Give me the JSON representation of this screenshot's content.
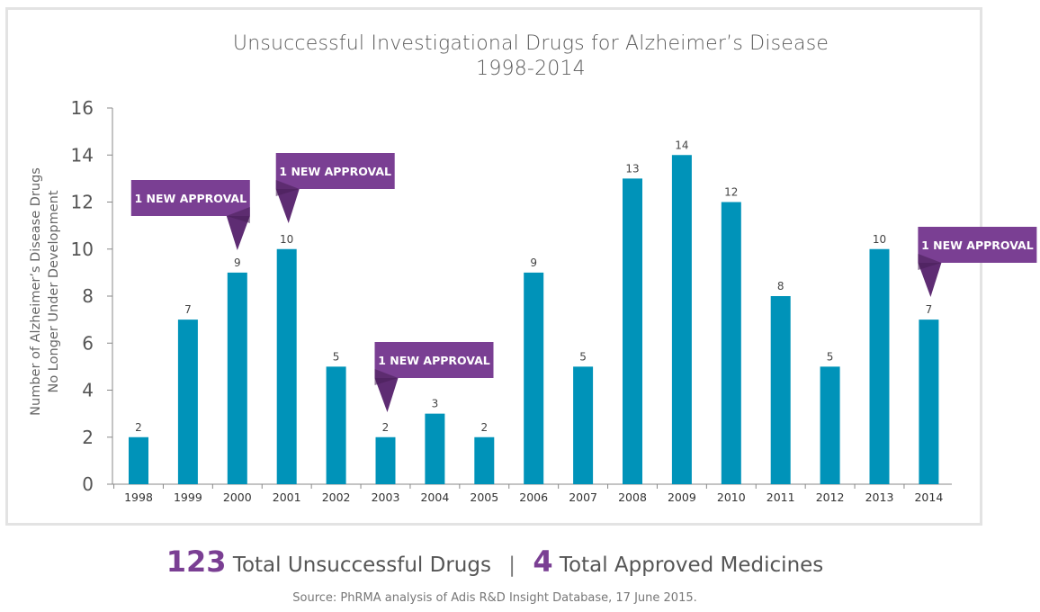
{
  "chart_data": {
    "type": "bar",
    "title": "Unsuccessful Investigational Drugs for Alzheimer’s Disease",
    "subtitle": "1998-2014",
    "ylabel_line1": "Number of Alzheimer’s Disease Drugs",
    "ylabel_line2": "No Longer Under Development",
    "categories": [
      "1998",
      "1999",
      "2000",
      "2001",
      "2002",
      "2003",
      "2004",
      "2005",
      "2006",
      "2007",
      "2008",
      "2009",
      "2010",
      "2011",
      "2012",
      "2013",
      "2014"
    ],
    "values": [
      2,
      7,
      9,
      10,
      5,
      2,
      3,
      2,
      9,
      5,
      13,
      14,
      12,
      8,
      5,
      10,
      7
    ],
    "ylim": [
      0,
      16
    ],
    "yticks": [
      0,
      2,
      4,
      6,
      8,
      10,
      12,
      14,
      16
    ],
    "bar_color": "#0093b9",
    "annotation_color": "#7a3f93",
    "annotations": [
      {
        "year": "2000",
        "text": "1 NEW APPROVAL"
      },
      {
        "year": "2001",
        "text": "1 NEW APPROVAL"
      },
      {
        "year": "2003",
        "text": "1 NEW APPROVAL"
      },
      {
        "year": "2014",
        "text": "1 NEW APPROVAL"
      }
    ]
  },
  "summary": {
    "unsuccessful_count": "123",
    "unsuccessful_label": "Total Unsuccessful Drugs",
    "separator": "|",
    "approved_count": "4",
    "approved_label": "Total Approved Medicines"
  },
  "source": "Source: PhRMA analysis of Adis R&D Insight Database, 17 June 2015."
}
